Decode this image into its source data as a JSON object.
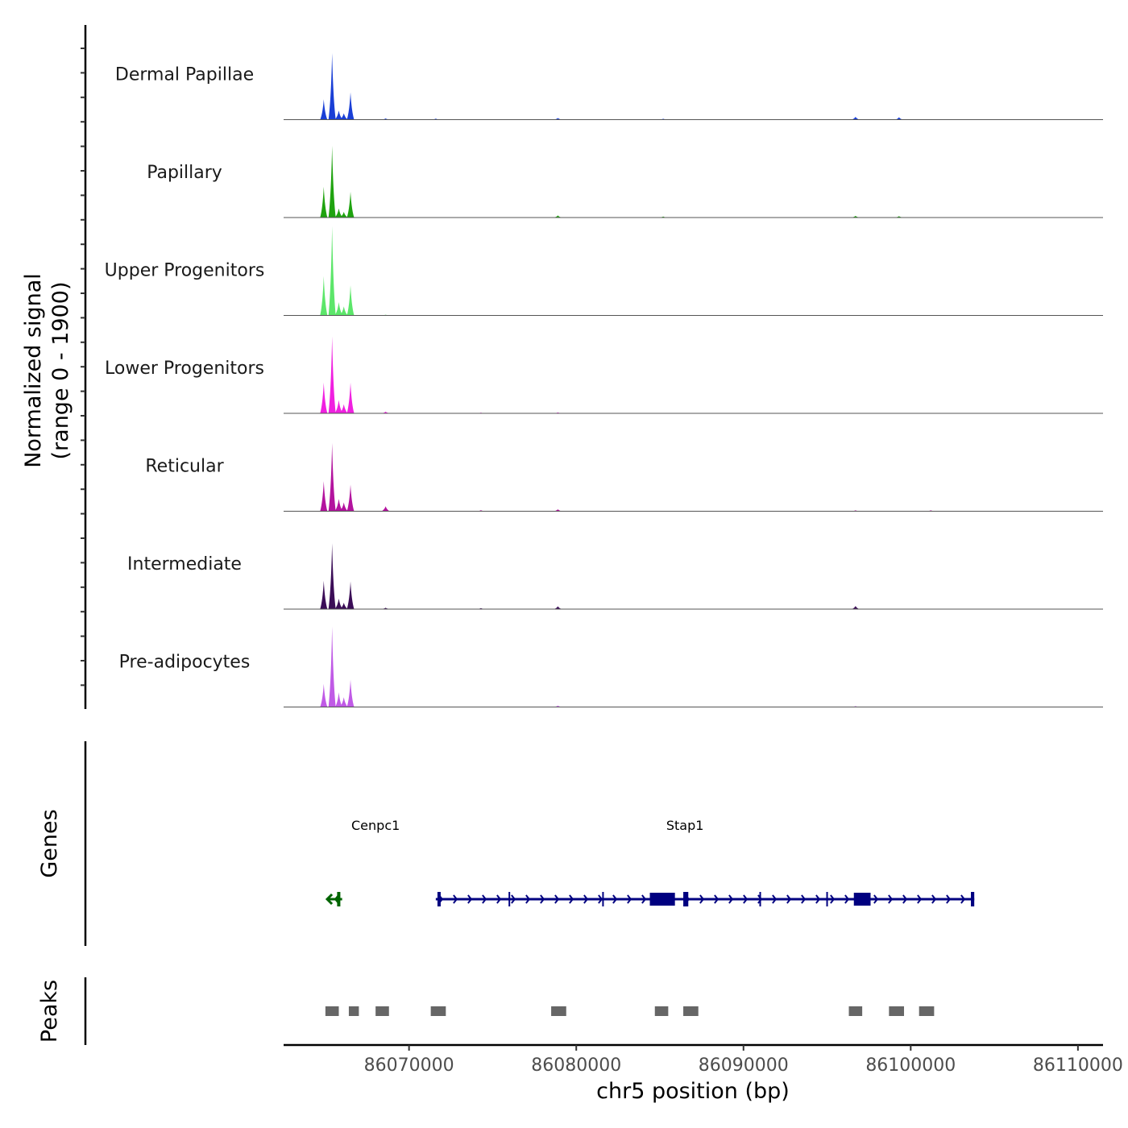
{
  "chart_data": {
    "type": "area",
    "title": "",
    "ylabel_line1": "Normalized signal",
    "ylabel_line2": "(range 0 - 1900)",
    "signal_range": [
      0,
      1900
    ],
    "xlabel": "chr5 position (bp)",
    "xlim": [
      86062500,
      86111500
    ],
    "x_ticks": [
      86070000,
      86080000,
      86090000,
      86100000,
      86110000
    ],
    "x_tick_labels": [
      "86070000",
      "86080000",
      "86090000",
      "86100000",
      "86110000"
    ],
    "tracks": [
      {
        "name": "Dermal Papillae",
        "color": "#1a3fd6",
        "peaks": [
          {
            "pos": 86064900,
            "value": 580
          },
          {
            "pos": 86065400,
            "value": 1900
          },
          {
            "pos": 86065800,
            "value": 260
          },
          {
            "pos": 86066100,
            "value": 180
          },
          {
            "pos": 86066500,
            "value": 780
          },
          {
            "pos": 86068600,
            "value": 35
          },
          {
            "pos": 86071600,
            "value": 30
          },
          {
            "pos": 86078900,
            "value": 45
          },
          {
            "pos": 86085200,
            "value": 25
          },
          {
            "pos": 86096700,
            "value": 80
          },
          {
            "pos": 86099300,
            "value": 70
          }
        ]
      },
      {
        "name": "Papillary",
        "color": "#1fa30f",
        "peaks": [
          {
            "pos": 86064900,
            "value": 880
          },
          {
            "pos": 86065400,
            "value": 2050
          },
          {
            "pos": 86065800,
            "value": 260
          },
          {
            "pos": 86066100,
            "value": 160
          },
          {
            "pos": 86066500,
            "value": 740
          },
          {
            "pos": 86078900,
            "value": 60
          },
          {
            "pos": 86085200,
            "value": 30
          },
          {
            "pos": 86096700,
            "value": 50
          },
          {
            "pos": 86099300,
            "value": 40
          }
        ]
      },
      {
        "name": "Upper Progenitors",
        "color": "#5ce66a",
        "peaks": [
          {
            "pos": 86064900,
            "value": 1120
          },
          {
            "pos": 86065400,
            "value": 2550
          },
          {
            "pos": 86065800,
            "value": 380
          },
          {
            "pos": 86066100,
            "value": 260
          },
          {
            "pos": 86066500,
            "value": 860
          },
          {
            "pos": 86068600,
            "value": 20
          }
        ]
      },
      {
        "name": "Lower Progenitors",
        "color": "#f020e0",
        "peaks": [
          {
            "pos": 86064900,
            "value": 880
          },
          {
            "pos": 86065400,
            "value": 2200
          },
          {
            "pos": 86065800,
            "value": 380
          },
          {
            "pos": 86066100,
            "value": 260
          },
          {
            "pos": 86066500,
            "value": 880
          },
          {
            "pos": 86068600,
            "value": 50
          },
          {
            "pos": 86074300,
            "value": 20
          },
          {
            "pos": 86078900,
            "value": 25
          }
        ]
      },
      {
        "name": "Reticular",
        "color": "#b3139e",
        "peaks": [
          {
            "pos": 86064900,
            "value": 860
          },
          {
            "pos": 86065400,
            "value": 1950
          },
          {
            "pos": 86065800,
            "value": 350
          },
          {
            "pos": 86066100,
            "value": 250
          },
          {
            "pos": 86066500,
            "value": 760
          },
          {
            "pos": 86068600,
            "value": 140
          },
          {
            "pos": 86074300,
            "value": 30
          },
          {
            "pos": 86078900,
            "value": 55
          },
          {
            "pos": 86096700,
            "value": 25
          },
          {
            "pos": 86101200,
            "value": 25
          }
        ]
      },
      {
        "name": "Intermediate",
        "color": "#3b0d57",
        "peaks": [
          {
            "pos": 86064900,
            "value": 810
          },
          {
            "pos": 86065400,
            "value": 1880
          },
          {
            "pos": 86065800,
            "value": 300
          },
          {
            "pos": 86066100,
            "value": 180
          },
          {
            "pos": 86066500,
            "value": 790
          },
          {
            "pos": 86068600,
            "value": 40
          },
          {
            "pos": 86074300,
            "value": 30
          },
          {
            "pos": 86078900,
            "value": 80
          },
          {
            "pos": 86096700,
            "value": 90
          }
        ]
      },
      {
        "name": "Pre-adipocytes",
        "color": "#c05ae6",
        "peaks": [
          {
            "pos": 86064900,
            "value": 660
          },
          {
            "pos": 86065400,
            "value": 2300
          },
          {
            "pos": 86065800,
            "value": 420
          },
          {
            "pos": 86066100,
            "value": 280
          },
          {
            "pos": 86066500,
            "value": 780
          },
          {
            "pos": 86078900,
            "value": 40
          },
          {
            "pos": 86096700,
            "value": 25
          }
        ]
      }
    ],
    "genes_label": "Genes",
    "genes": [
      {
        "name": "Cenpc1",
        "strand": "-",
        "color": "#006400",
        "label_pos": 86068000,
        "start": 86065200,
        "end": 86066000,
        "exons": [
          [
            86065700,
            86065850
          ]
        ]
      },
      {
        "name": "Stap1",
        "strand": "+",
        "color": "#000080",
        "label_pos": 86086500,
        "start": 86071600,
        "end": 86103800,
        "exons": [
          [
            86071700,
            86071800
          ],
          [
            86084400,
            86085900
          ],
          [
            86086400,
            86086700
          ],
          [
            86096600,
            86097600
          ],
          [
            86103600,
            86103800
          ]
        ],
        "introns_marks": [
          86076000,
          86081600,
          86091000,
          86095000
        ]
      }
    ],
    "peaks_label": "Peaks",
    "peak_regions": [
      [
        86065000,
        86065800
      ],
      [
        86066400,
        86067000
      ],
      [
        86068000,
        86068800
      ],
      [
        86071300,
        86072200
      ],
      [
        86078500,
        86079400
      ],
      [
        86084700,
        86085500
      ],
      [
        86086400,
        86087300
      ],
      [
        86096300,
        86097100
      ],
      [
        86098700,
        86099600
      ],
      [
        86100500,
        86101400
      ]
    ]
  }
}
